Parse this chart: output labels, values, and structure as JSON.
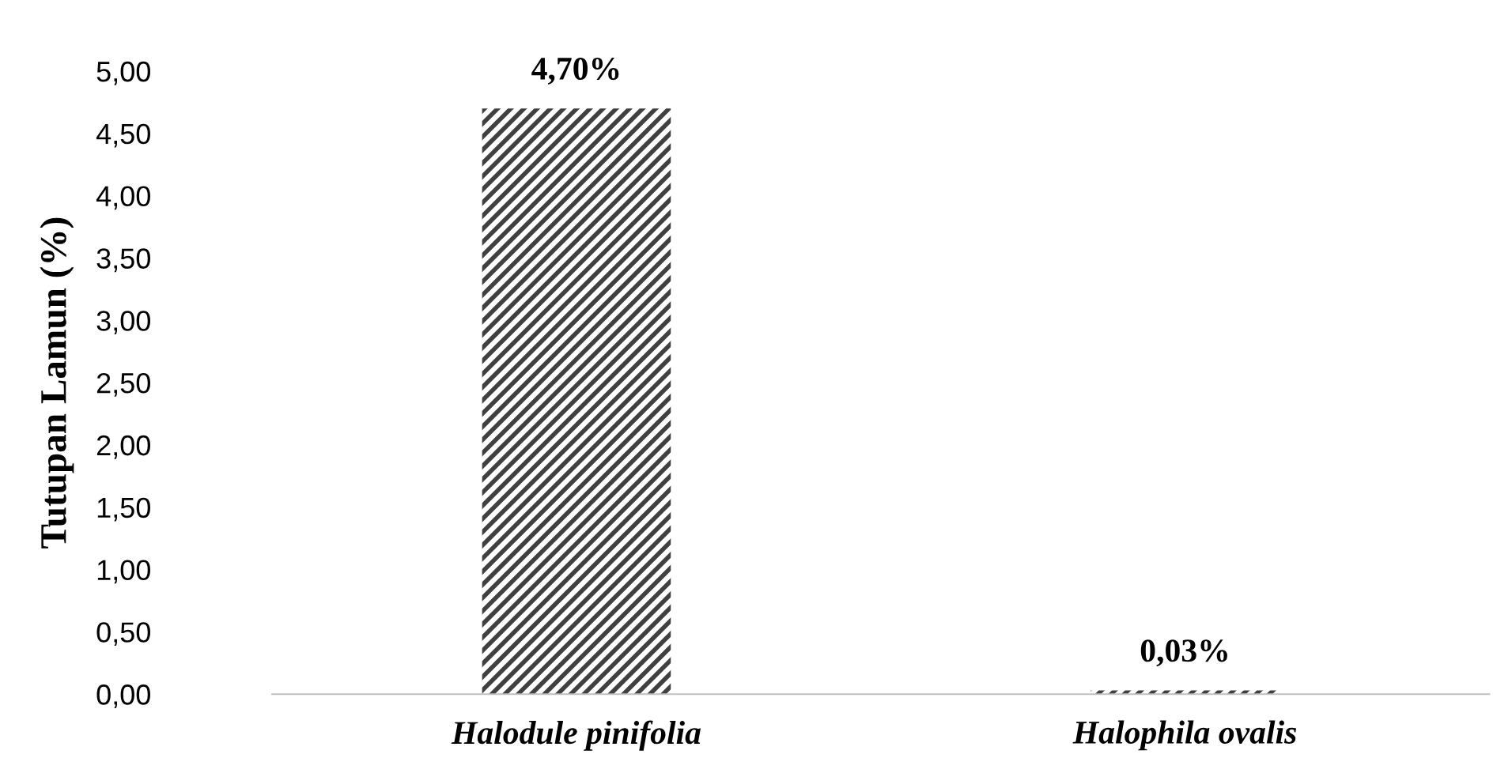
{
  "chart_data": {
    "type": "bar",
    "ylabel": "Tutupan Lamun (%)",
    "categories": [
      "Halodule pinifolia",
      "Halophila ovalis"
    ],
    "values": [
      4.7,
      0.03
    ],
    "color": "#404040",
    "value_labels": [
      "4,70%",
      "0,03%"
    ],
    "ylim": [
      0,
      5
    ],
    "yticks": [
      {
        "value": 0,
        "label": "0,00"
      },
      {
        "value": 0.5,
        "label": "0,50"
      },
      {
        "value": 1,
        "label": "1,00"
      },
      {
        "value": 1.5,
        "label": "1,50"
      },
      {
        "value": 2,
        "label": "2,00"
      },
      {
        "value": 2.5,
        "label": "2,50"
      },
      {
        "value": 3,
        "label": "3,00"
      },
      {
        "value": 3.5,
        "label": "3,50"
      },
      {
        "value": 4,
        "label": "4,00"
      },
      {
        "value": 4.5,
        "label": "4,50"
      },
      {
        "value": 5,
        "label": "5,00"
      }
    ],
    "grid": false,
    "legend": false
  }
}
